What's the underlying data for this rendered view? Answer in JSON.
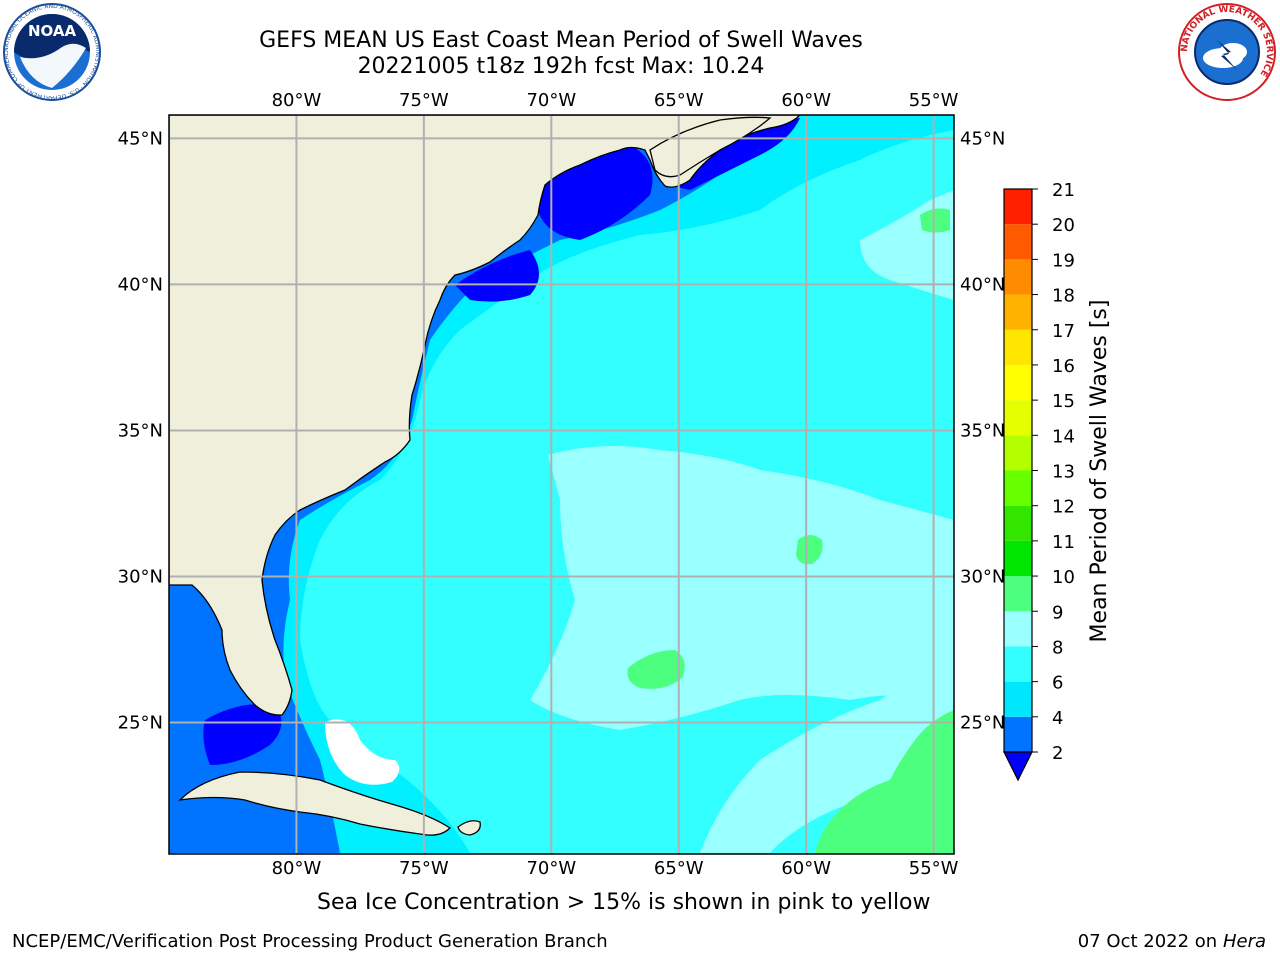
{
  "header": {
    "title_line1": "GEFS MEAN US East Coast Mean Period of Swell Waves",
    "title_line2": "20221005 t18z 192h fcst   Max: 10.24"
  },
  "logos": {
    "left": "noaa-logo",
    "left_text": "NOAA",
    "left_ring_text": "NATIONAL OCEANIC AND ATMOSPHERIC ADMINISTRATION · U.S. DEPARTMENT OF COMMERCE",
    "right": "nws-logo",
    "right_ring_text": "NATIONAL WEATHER SERVICE"
  },
  "map": {
    "lon_labels": [
      "80°W",
      "75°W",
      "70°W",
      "65°W",
      "60°W",
      "55°W"
    ],
    "lat_labels": [
      "45°N",
      "40°N",
      "35°N",
      "30°N",
      "25°N"
    ],
    "lon_values": [
      -80,
      -75,
      -70,
      -65,
      -60,
      -55
    ],
    "lat_values": [
      45,
      40,
      35,
      30,
      25
    ],
    "extent": {
      "lon_min": -85,
      "lon_max": -54.2,
      "lat_min": 20.5,
      "lat_max": 45.8
    },
    "land_color": "#efefdc",
    "grid_color": "#b0b0b0"
  },
  "colorbar": {
    "label": "Mean Period of Swell Waves [s]",
    "ticks": [
      "2",
      "4",
      "6",
      "8",
      "9",
      "10",
      "11",
      "12",
      "13",
      "14",
      "15",
      "16",
      "17",
      "18",
      "19",
      "20",
      "21"
    ],
    "colors": [
      "#0073ff",
      "#00e6ff",
      "#33ffff",
      "#99ffff",
      "#4dff7f",
      "#00e600",
      "#33e600",
      "#66ff00",
      "#b3ff00",
      "#e6ff00",
      "#ffff00",
      "#ffe600",
      "#ffb300",
      "#ff8c00",
      "#ff5a00",
      "#ff2000"
    ],
    "under_color": "#0000ff"
  },
  "caption": "Sea Ice Concentration > 15% is shown in pink to yellow",
  "footer": {
    "left": "NCEP/EMC/Verification Post Processing Product Generation Branch",
    "right_date": "07 Oct 2022 on ",
    "right_host": "Hera"
  }
}
